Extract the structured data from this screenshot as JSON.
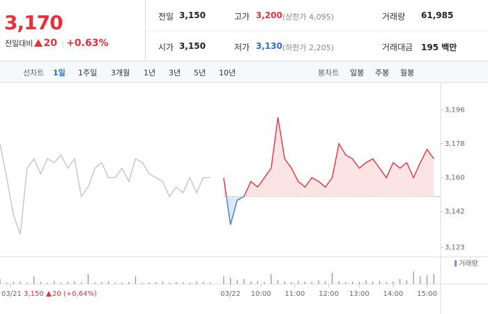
{
  "quote": {
    "price": "3,170",
    "change_label": "전일대비",
    "change": "20",
    "rate": "+0.63%",
    "cells": [
      {
        "label": "전일",
        "value": "3,150"
      },
      {
        "label": "고가",
        "value": "3,200",
        "note": "(상한가 4,095)"
      },
      {
        "label": "거래량",
        "value": "61,985"
      },
      {
        "label": "시가",
        "value": "3,150"
      },
      {
        "label": "저가",
        "value": "3,130",
        "note": "(하한가 2,205)"
      },
      {
        "label": "거래대금",
        "value": "195 백만"
      }
    ]
  },
  "nav": {
    "line_label": "선차트",
    "line_periods": [
      "1일",
      "1주일",
      "3개월",
      "1년",
      "3년",
      "5년",
      "10년"
    ],
    "candle_label": "봉차트",
    "candle_periods": [
      "일봉",
      "주봉",
      "월봉"
    ]
  },
  "chart_data": {
    "type": "line",
    "baseline": 3150,
    "xlim": [
      0,
      65
    ],
    "ylim": [
      3118,
      3208
    ],
    "yticks": [
      {
        "value": 3196,
        "label": "3,196"
      },
      {
        "value": 3178,
        "label": "3,178"
      },
      {
        "value": 3160,
        "label": "3,160"
      },
      {
        "value": 3142,
        "label": "3,142"
      },
      {
        "value": 3123,
        "label": "3,123"
      }
    ],
    "xticks": [
      {
        "value": 1.5,
        "label": "03/21"
      },
      {
        "value": 34,
        "label": "03/22"
      },
      {
        "value": 38.5,
        "label": "10:00"
      },
      {
        "value": 43.5,
        "label": "11:00"
      },
      {
        "value": 48.5,
        "label": "12:00"
      },
      {
        "value": 53,
        "label": "13:00"
      },
      {
        "value": 58,
        "label": "14:00"
      },
      {
        "value": 63,
        "label": "15:00"
      }
    ],
    "series": [
      {
        "color": "#c4c4c4",
        "x": [
          0,
          1,
          2,
          3,
          4,
          5,
          6,
          7,
          8,
          9,
          10,
          11,
          12,
          13,
          14,
          15,
          16,
          17,
          18,
          19,
          20,
          21,
          22,
          23,
          24,
          25,
          26,
          27,
          28,
          29,
          30,
          31
        ],
        "values": [
          3178,
          3160,
          3140,
          3130,
          3165,
          3170,
          3162,
          3170,
          3168,
          3172,
          3165,
          3170,
          3150,
          3155,
          3165,
          3168,
          3160,
          3160,
          3165,
          3158,
          3170,
          3168,
          3162,
          3160,
          3158,
          3150,
          3155,
          3152,
          3160,
          3152,
          3160,
          3160
        ]
      },
      {
        "color": "#e8303a",
        "below_color": "#3a7bd5",
        "fill": "#fde4e4",
        "x": [
          33,
          34,
          35,
          36,
          37,
          38,
          39,
          40,
          41,
          42,
          43,
          44,
          45,
          46,
          47,
          48,
          49,
          50,
          51,
          52,
          53,
          54,
          55,
          56,
          57,
          58,
          59,
          60,
          61,
          62,
          63,
          64
        ],
        "values": [
          3160,
          3135,
          3148,
          3150,
          3158,
          3155,
          3160,
          3165,
          3192,
          3170,
          3165,
          3158,
          3155,
          3160,
          3158,
          3155,
          3160,
          3178,
          3172,
          3170,
          3165,
          3168,
          3170,
          3165,
          3160,
          3168,
          3165,
          3168,
          3160,
          3168,
          3175,
          3170
        ]
      }
    ],
    "volume": {
      "name": "거래량",
      "color": "#9b7fd0",
      "vlim": [
        0,
        100
      ],
      "values": [
        20,
        5,
        8,
        10,
        6,
        30,
        8,
        5,
        12,
        6,
        8,
        10,
        5,
        40,
        6,
        8,
        10,
        5,
        6,
        8,
        30,
        5,
        6,
        8,
        10,
        5,
        8,
        6,
        5,
        10,
        8,
        6,
        0,
        30,
        25,
        15,
        20,
        10,
        12,
        8,
        40,
        15,
        10,
        8,
        12,
        10,
        8,
        15,
        10,
        45,
        12,
        8,
        10,
        8,
        15,
        10,
        12,
        8,
        10,
        20,
        15,
        50,
        30,
        35,
        40
      ]
    },
    "footer": {
      "date": "03/21",
      "price": "3,150",
      "change": "20 (+0,64%)"
    }
  }
}
